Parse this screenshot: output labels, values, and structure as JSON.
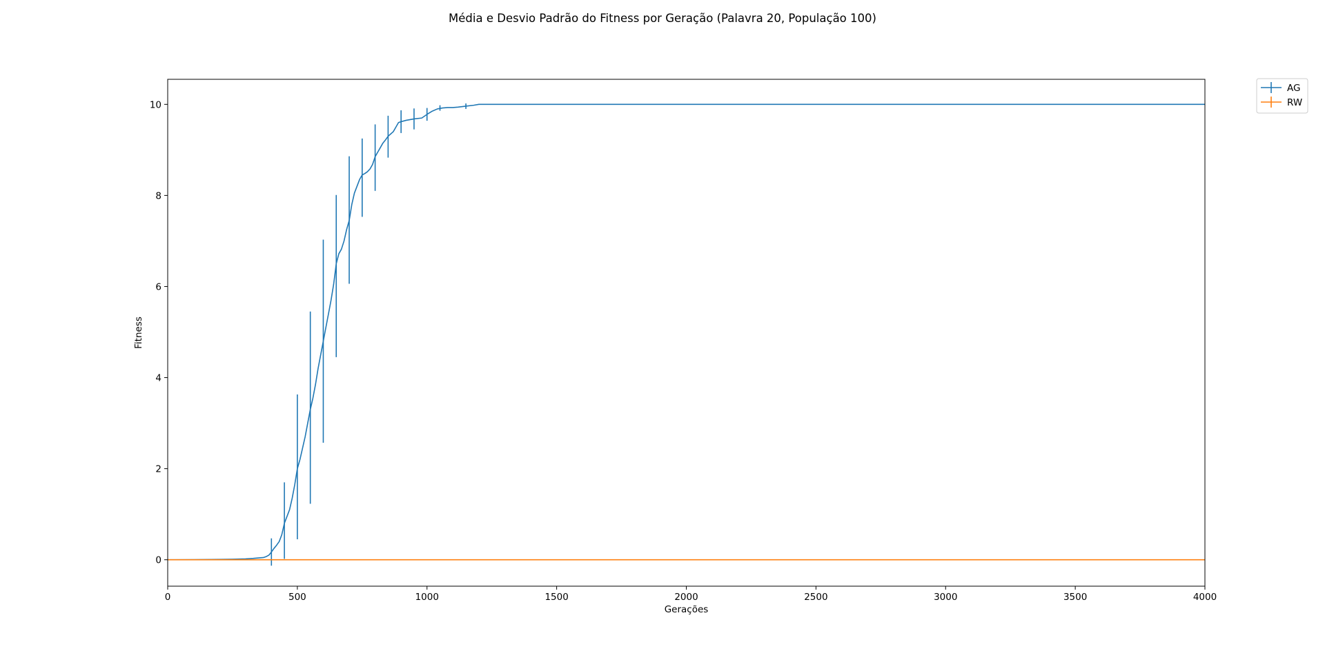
{
  "chart_data": {
    "type": "line",
    "title": "Média e Desvio Padrão do Fitness por Geração (Palavra 20, População 100)",
    "xlabel": "Gerações",
    "ylabel": "Fitness",
    "xlim": [
      0,
      4000
    ],
    "ylim": [
      -0.58,
      10.55
    ],
    "x_ticks": [
      0,
      500,
      1000,
      1500,
      2000,
      2500,
      3000,
      3500,
      4000
    ],
    "y_ticks": [
      0,
      2,
      4,
      6,
      8,
      10
    ],
    "grid": false,
    "legend_position": "outside-top-right",
    "series": [
      {
        "name": "AG",
        "color": "#1f77b4",
        "x": [
          0,
          100,
          200,
          250,
          300,
          330,
          350,
          370,
          380,
          390,
          400,
          410,
          420,
          430,
          440,
          450,
          460,
          470,
          480,
          490,
          500,
          510,
          520,
          530,
          540,
          550,
          560,
          570,
          580,
          590,
          600,
          610,
          620,
          630,
          640,
          650,
          660,
          670,
          680,
          690,
          700,
          710,
          720,
          730,
          740,
          750,
          760,
          770,
          780,
          790,
          800,
          810,
          820,
          830,
          840,
          850,
          860,
          870,
          880,
          890,
          900,
          920,
          950,
          980,
          1000,
          1020,
          1040,
          1060,
          1080,
          1100,
          1120,
          1150,
          1180,
          1200,
          1300,
          1500,
          2000,
          2500,
          3000,
          3500,
          4000
        ],
        "y": [
          0,
          0.003,
          0.008,
          0.012,
          0.02,
          0.03,
          0.04,
          0.05,
          0.07,
          0.1,
          0.17,
          0.25,
          0.32,
          0.4,
          0.55,
          0.8,
          0.95,
          1.1,
          1.35,
          1.65,
          2.0,
          2.2,
          2.45,
          2.7,
          3.0,
          3.3,
          3.55,
          3.85,
          4.2,
          4.5,
          4.8,
          5.1,
          5.4,
          5.7,
          6.05,
          6.5,
          6.72,
          6.82,
          7.0,
          7.25,
          7.45,
          7.8,
          8.05,
          8.2,
          8.35,
          8.45,
          8.48,
          8.52,
          8.58,
          8.68,
          8.85,
          8.95,
          9.05,
          9.15,
          9.22,
          9.3,
          9.35,
          9.4,
          9.5,
          9.6,
          9.62,
          9.65,
          9.68,
          9.7,
          9.78,
          9.85,
          9.9,
          9.92,
          9.93,
          9.93,
          9.94,
          9.96,
          9.98,
          10.0,
          10.0,
          10.0,
          10.0,
          10.0,
          10.0,
          10.0,
          10.0
        ],
        "error_bars": [
          {
            "x": 400,
            "y": 0.17,
            "std": 0.3
          },
          {
            "x": 450,
            "y": 0.86,
            "std": 0.84
          },
          {
            "x": 500,
            "y": 2.04,
            "std": 1.59
          },
          {
            "x": 550,
            "y": 3.34,
            "std": 2.11
          },
          {
            "x": 600,
            "y": 4.8,
            "std": 2.23
          },
          {
            "x": 650,
            "y": 6.23,
            "std": 1.78
          },
          {
            "x": 700,
            "y": 7.46,
            "std": 1.4
          },
          {
            "x": 750,
            "y": 8.39,
            "std": 0.86
          },
          {
            "x": 800,
            "y": 8.83,
            "std": 0.73
          },
          {
            "x": 850,
            "y": 9.29,
            "std": 0.46
          },
          {
            "x": 900,
            "y": 9.62,
            "std": 0.25
          },
          {
            "x": 950,
            "y": 9.68,
            "std": 0.23
          },
          {
            "x": 1000,
            "y": 9.78,
            "std": 0.14
          },
          {
            "x": 1050,
            "y": 9.92,
            "std": 0.06
          },
          {
            "x": 1150,
            "y": 9.96,
            "std": 0.06
          }
        ]
      },
      {
        "name": "RW",
        "color": "#ff7f0e",
        "x": [
          0,
          4000
        ],
        "y": [
          0,
          0
        ],
        "error_bars": []
      }
    ]
  }
}
